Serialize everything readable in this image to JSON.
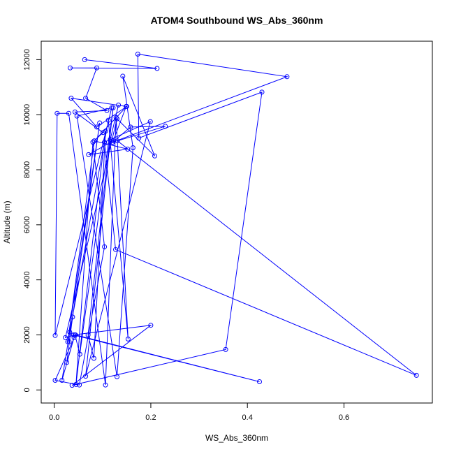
{
  "chart_data": {
    "type": "line",
    "title": "ATOM4 Southbound WS_Abs_360nm",
    "xlabel": "WS_Abs_360nm",
    "ylabel": "Altitude (m)",
    "xlim": [
      -0.027,
      0.783
    ],
    "ylim": [
      -475,
      12670
    ],
    "x_ticks": [
      0.0,
      0.2,
      0.4,
      0.6
    ],
    "x_tick_labels": [
      "0.0",
      "0.2",
      "0.4",
      "0.6"
    ],
    "y_ticks": [
      0,
      2000,
      4000,
      6000,
      8000,
      10000,
      12000
    ],
    "y_tick_labels": [
      "0",
      "2000",
      "4000",
      "6000",
      "8000",
      "10000",
      "12000"
    ],
    "grid": false,
    "line_color": "#0000ff",
    "marker": "open-circle",
    "series": [
      {
        "x": [
          0.063,
          0.213,
          0.033,
          0.088,
          0.065,
          0.109,
          0.043,
          0.101,
          0.083,
          0.152,
          0.071,
          0.122,
          0.149,
          0.035,
          0.088,
          0.15,
          0.083,
          0.028,
          0.094,
          0.031,
          0.038,
          0.026,
          0.041,
          0.016,
          0.032,
          0.112,
          0.153,
          0.128,
          0.106,
          0.03,
          0.006,
          0.002,
          0.119,
          0.047,
          0.13,
          0.163,
          0.142,
          0.208,
          0.13,
          0.023,
          0.043,
          0.053,
          0.122,
          0.07,
          0.082,
          0.106,
          0.045,
          0.08,
          0.104,
          0.052,
          0.002,
          0.044,
          0.425,
          0.04,
          0.2,
          0.037,
          0.355,
          0.43,
          0.175,
          0.173,
          0.482,
          0.121,
          0.158,
          0.23,
          0.131,
          0.75,
          0.127,
          0.104,
          0.199,
          0.065,
          0.116,
          0.133
        ],
        "y": [
          12000,
          11680,
          11700,
          11700,
          10600,
          10150,
          10100,
          9350,
          9050,
          8750,
          8550,
          9050,
          10300,
          10600,
          9550,
          10300,
          9050,
          1750,
          9700,
          1750,
          2650,
          1000,
          1900,
          350,
          2100,
          9800,
          1850,
          9900,
          180,
          10050,
          10050,
          1980,
          10250,
          9950,
          480,
          8800,
          11400,
          8500,
          9850,
          1900,
          2000,
          1300,
          10250,
          2000,
          1150,
          9400,
          200,
          9000,
          5200,
          180,
          350,
          2000,
          300,
          2000,
          2350,
          170,
          1470,
          10820,
          9150,
          12200,
          11380,
          9000,
          9550,
          9580,
          9050,
          530,
          5100,
          9000,
          9750,
          500,
          9100,
          10350
        ]
      }
    ]
  }
}
